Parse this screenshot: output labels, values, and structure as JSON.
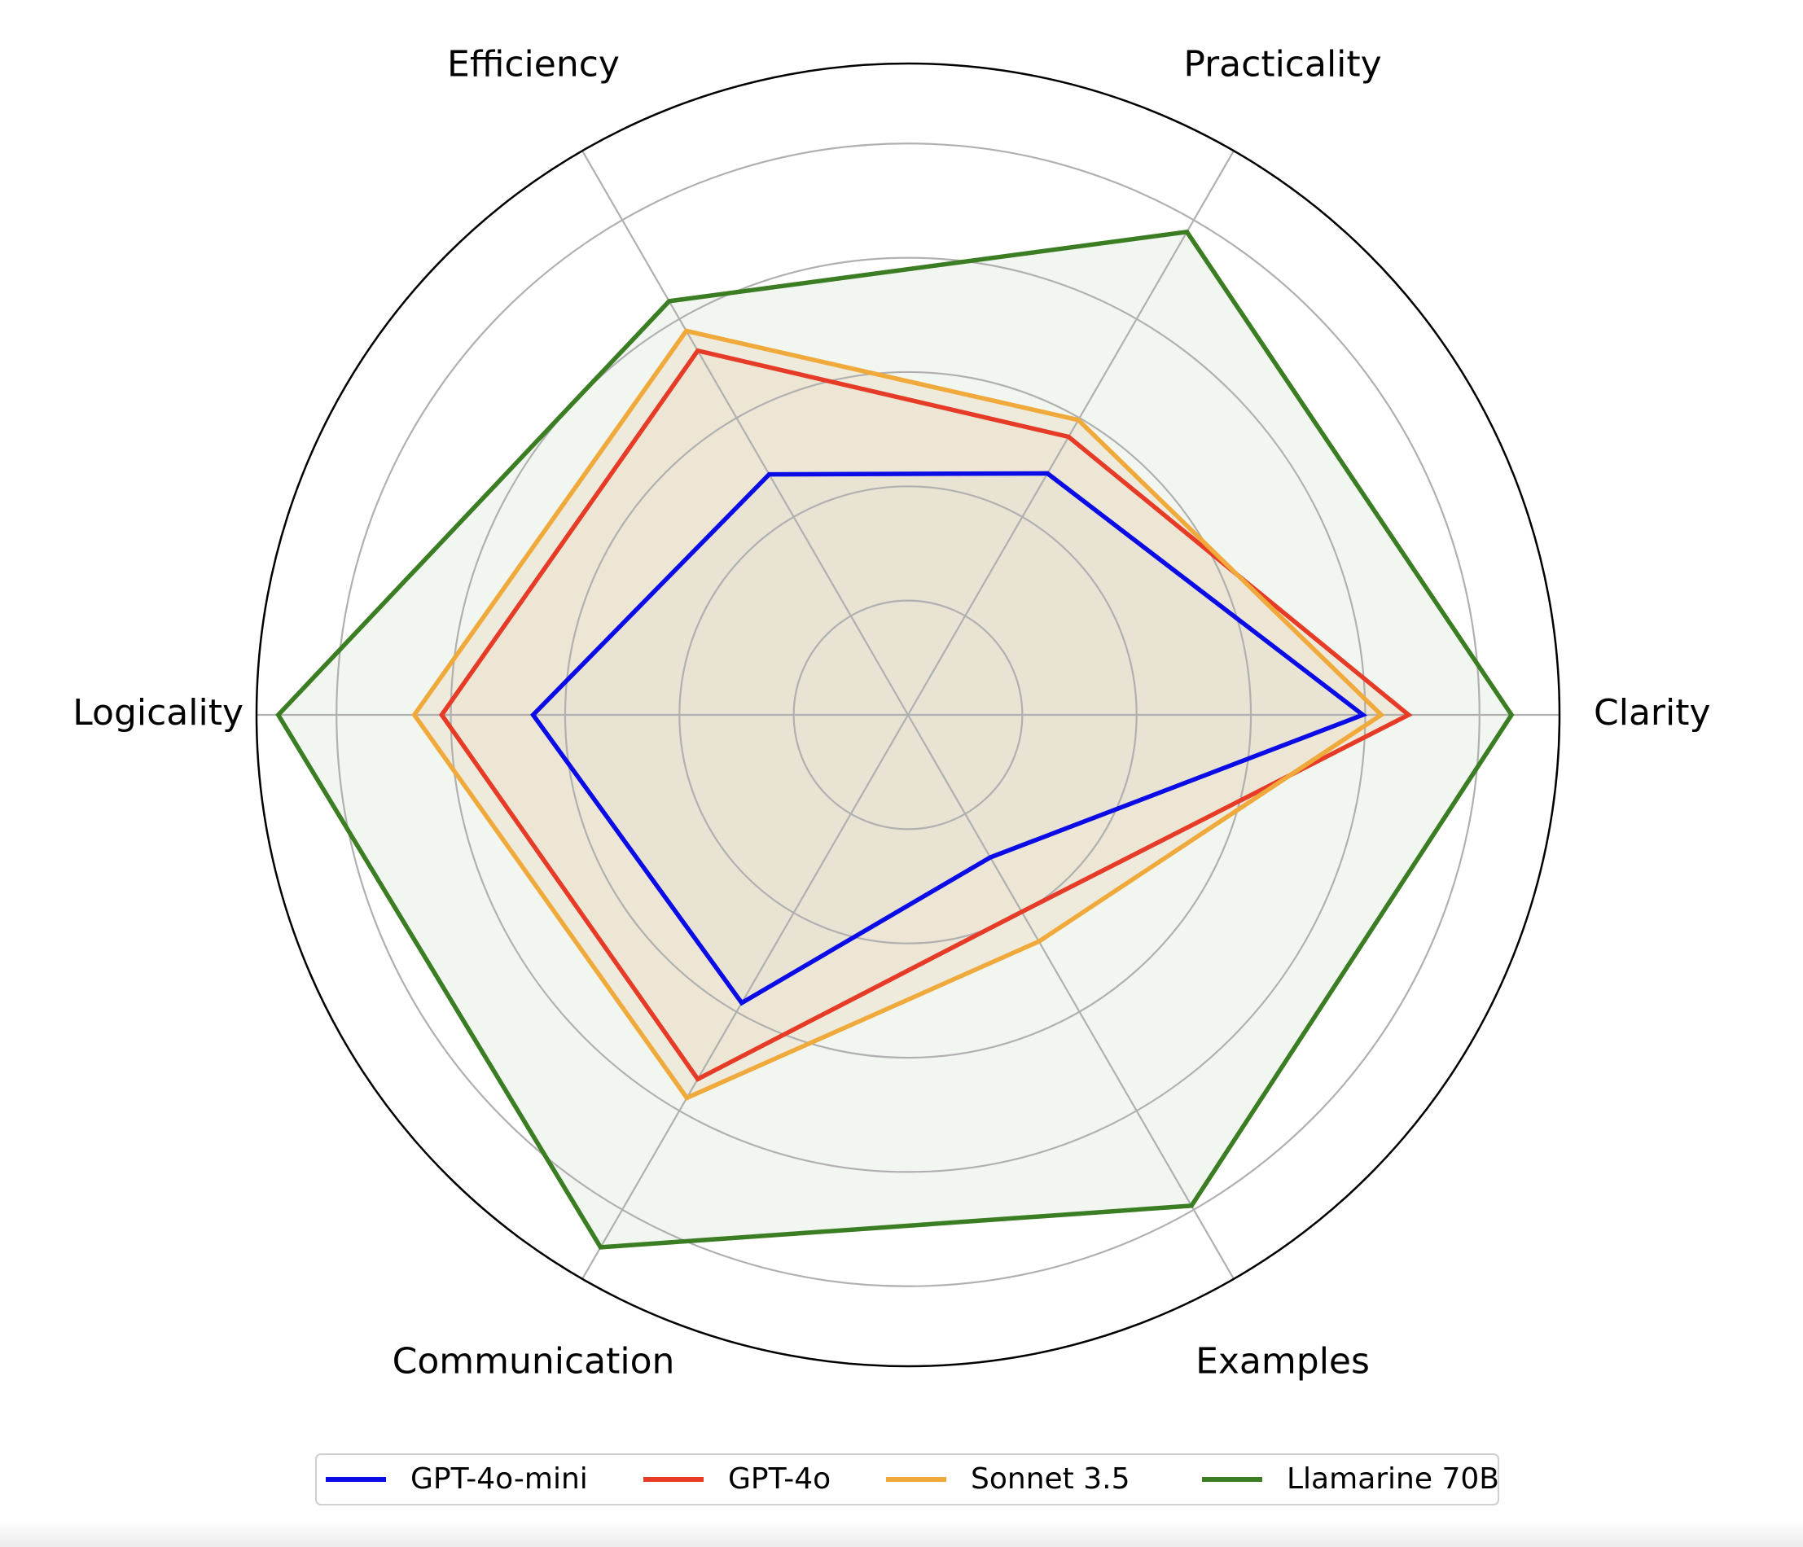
{
  "chart_data": {
    "type": "radar",
    "axes": [
      "Clarity",
      "Practicality",
      "Efficiency",
      "Logicality",
      "Communication",
      "Examples"
    ],
    "rmax": 5.7,
    "rings": [
      1,
      2,
      3,
      4,
      5
    ],
    "grid": true,
    "legend_position": "bottom",
    "series": [
      {
        "name": "GPT-4o-mini",
        "color": "#0b0be6",
        "fill": "#b4c9e4",
        "values": [
          3.98,
          2.44,
          2.43,
          3.28,
          2.91,
          1.44
        ]
      },
      {
        "name": "GPT-4o",
        "color": "#e53b27",
        "fill": "#f0d4b4",
        "values": [
          4.38,
          2.81,
          3.68,
          4.08,
          3.68,
          1.99
        ]
      },
      {
        "name": "Sonnet 3.5",
        "color": "#f0a93b",
        "fill": "#f0d4b4",
        "values": [
          4.14,
          2.98,
          3.88,
          4.32,
          3.87,
          2.29
        ]
      },
      {
        "name": "Llamarine 70B",
        "color": "#3a7d22",
        "fill": "#e7efe3",
        "values": [
          5.28,
          4.88,
          4.18,
          5.51,
          5.38,
          4.96
        ]
      }
    ]
  }
}
